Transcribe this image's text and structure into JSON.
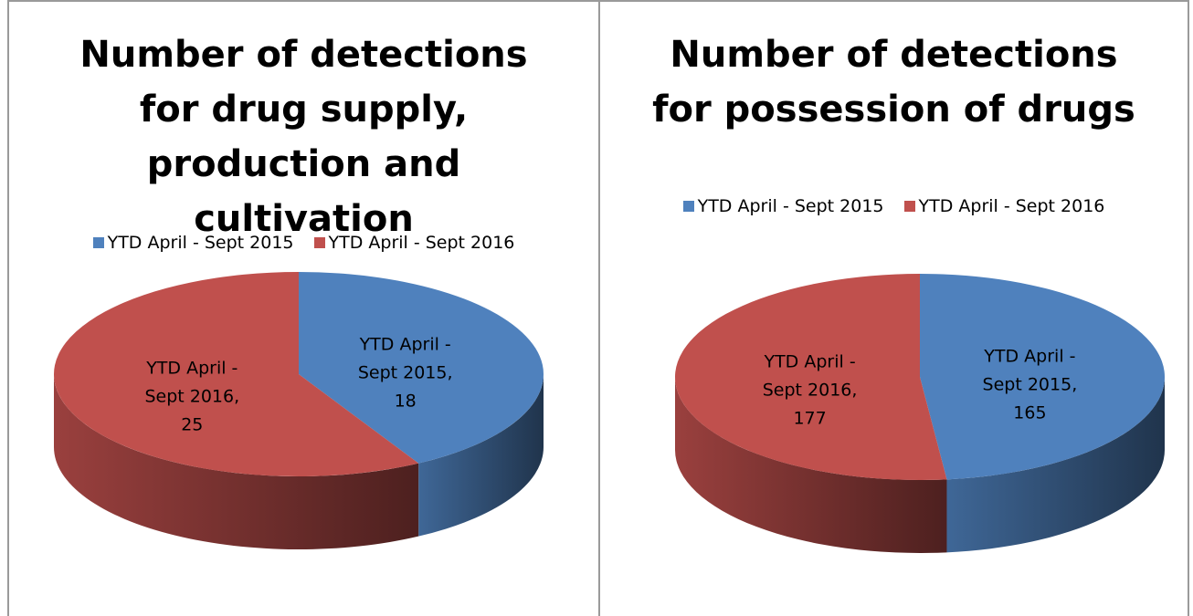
{
  "chart_data": [
    {
      "type": "pie",
      "title": "Number of detections for drug supply, production and cultivation",
      "categories": [
        "YTD April - Sept 2015",
        "YTD April - Sept 2016"
      ],
      "values": [
        18,
        25
      ],
      "value_labels": [
        "YTD April - Sept 2015, 18",
        "YTD April - Sept 2016, 25"
      ],
      "colors": [
        "#4f81bd",
        "#c0504d"
      ],
      "legend": "top",
      "three_d": true
    },
    {
      "type": "pie",
      "title": "Number of detections for possession of drugs",
      "categories": [
        "YTD April - Sept 2015",
        "YTD April - Sept 2016"
      ],
      "values": [
        165,
        177
      ],
      "value_labels": [
        "YTD April - Sept 2015, 165",
        "YTD April - Sept 2016, 177"
      ],
      "colors": [
        "#4f81bd",
        "#c0504d"
      ],
      "legend": "top",
      "three_d": true
    }
  ]
}
